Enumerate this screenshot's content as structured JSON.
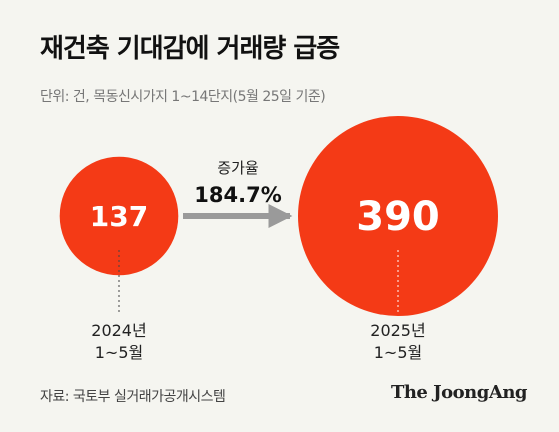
{
  "title": "재건축 기대감에 거래량 급증",
  "subtitle": "단위: 건, 목동신시가지 1~14단지(5월 25일 기준)",
  "source": "자료: 국토부 실거래가공개시스템",
  "brand": "The JoongAng",
  "colors": {
    "bubble": "#f43a16",
    "arrow": "#9a9a9a",
    "background": "#f5f5f0"
  },
  "chart_data": {
    "type": "bubble",
    "categories": [
      {
        "line1": "2024년",
        "line2": "1~5월"
      },
      {
        "line1": "2025년",
        "line2": "1~5월"
      }
    ],
    "values": [
      137,
      390
    ],
    "value_labels": [
      "137",
      "390"
    ],
    "annotation": {
      "label": "증가율",
      "value": "184.7%"
    }
  }
}
